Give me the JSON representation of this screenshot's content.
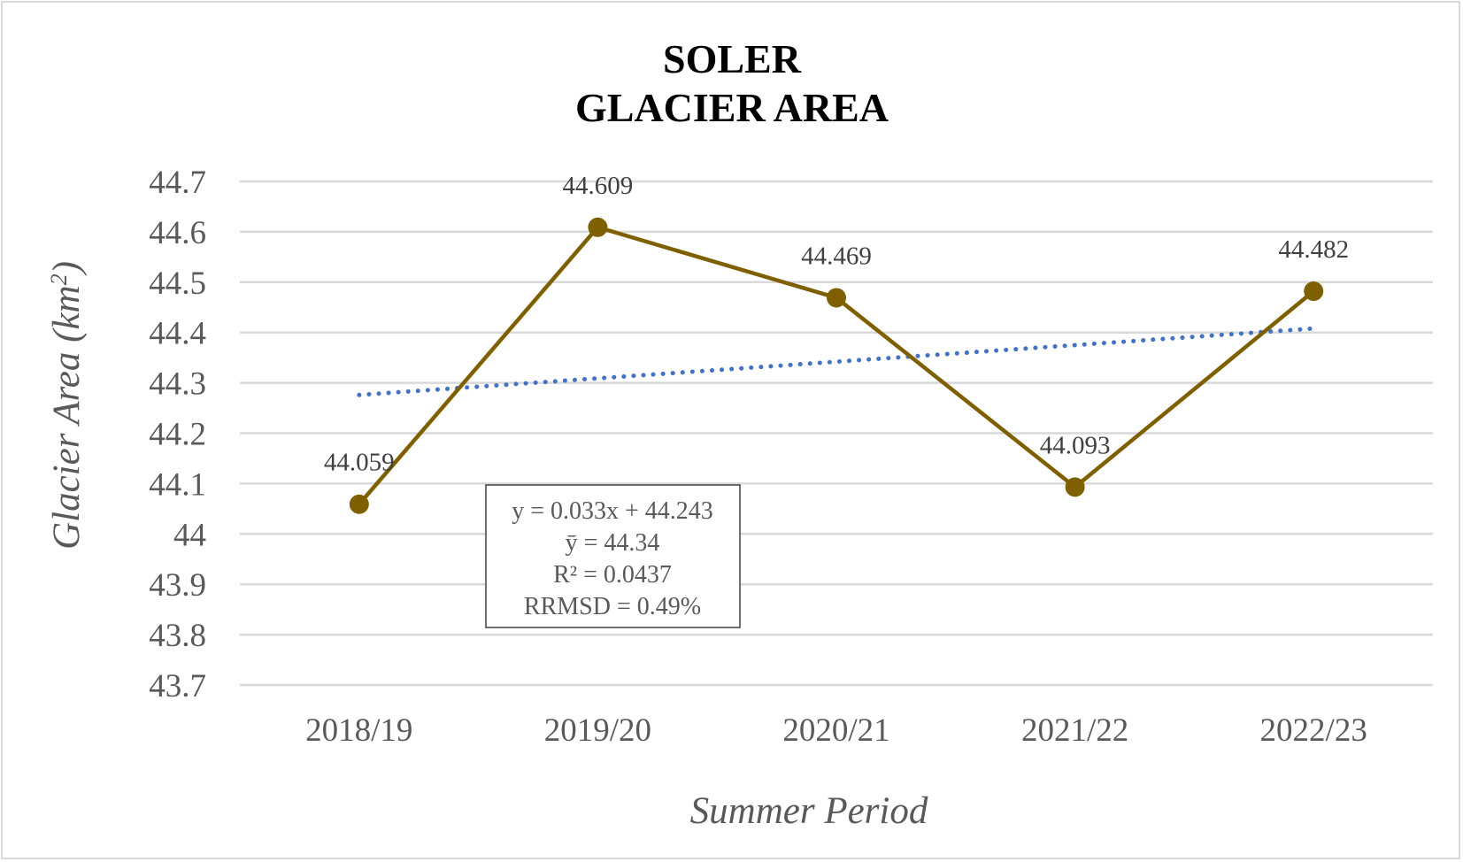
{
  "chart_data": {
    "type": "line",
    "title_lines": [
      "SOLER",
      "GLACIER AREA"
    ],
    "xlabel": "Summer Period",
    "ylabel": "Glacier Area (km²)",
    "ylabel_main": "Glacier Area (km",
    "ylabel_sup": "2",
    "ylabel_close": ")",
    "categories": [
      "2018/19",
      "2019/20",
      "2020/21",
      "2021/22",
      "2022/23"
    ],
    "series": [
      {
        "values": [
          44.059,
          44.609,
          44.469,
          44.093,
          44.482
        ]
      }
    ],
    "data_labels": [
      "44.059",
      "44.609",
      "44.469",
      "44.093",
      "44.482"
    ],
    "trendline": {
      "type": "linear",
      "slope": 0.033,
      "intercept": 44.243,
      "style": "dotted"
    },
    "ylim": [
      43.7,
      44.7
    ],
    "ytick_step": 0.1,
    "yticks": [
      "43.7",
      "43.8",
      "43.9",
      "44",
      "44.1",
      "44.2",
      "44.3",
      "44.4",
      "44.5",
      "44.6",
      "44.7"
    ],
    "grid": true,
    "legend": "none",
    "stats_box": [
      "y = 0.033x + 44.243",
      "ȳ = 44.34",
      "R² = 0.0437",
      "RRMSD = 0.49%"
    ],
    "colors": {
      "series": "#7f6000",
      "trendline": "#4472c4",
      "grid": "#d9d9d9"
    }
  }
}
